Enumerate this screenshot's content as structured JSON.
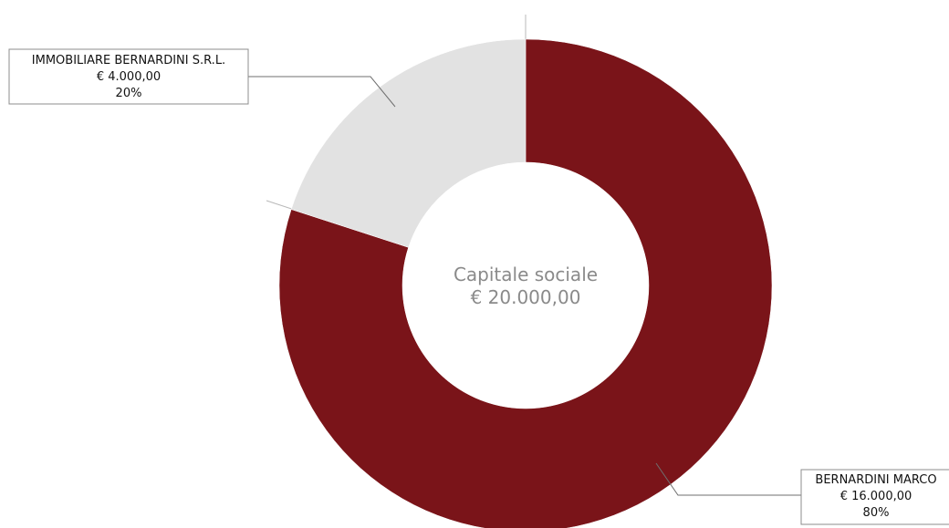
{
  "chart_data": {
    "type": "pie",
    "donut": true,
    "center_label": {
      "line1": "Capitale sociale",
      "line2": "€ 20.000,00"
    },
    "slices": [
      {
        "name": "BERNARDINI MARCO",
        "value_label": "€ 16.000,00",
        "percent_label": "80%",
        "value": 16000,
        "percent": 80,
        "color": "#7a1419"
      },
      {
        "name": "IMMOBILIARE BERNARDINI S.R.L.",
        "value_label": "€ 4.000,00",
        "percent_label": "20%",
        "value": 4000,
        "percent": 20,
        "color": "#e2e2e2"
      }
    ],
    "legend": "none"
  }
}
